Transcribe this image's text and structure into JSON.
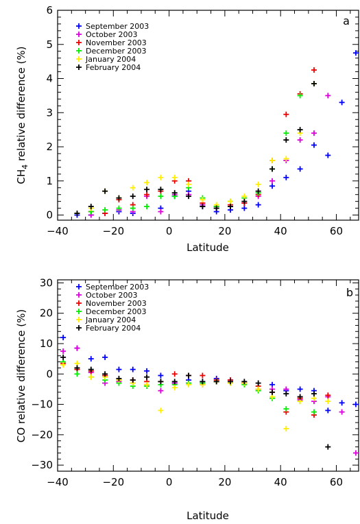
{
  "series_meta": [
    {
      "name": "September 2003",
      "color": "#0000ff"
    },
    {
      "name": "October 2003",
      "color": "#dd00dd"
    },
    {
      "name": "November 2003",
      "color": "#ee0000"
    },
    {
      "name": "December 2003",
      "color": "#00ee00"
    },
    {
      "name": "January 2004",
      "color": "#ffee00"
    },
    {
      "name": "February 2004",
      "color": "#000000"
    }
  ],
  "chart_data": [
    {
      "type": "scatter",
      "panel_label": "a",
      "xlabel": "Latitude",
      "ylabel_main": "CH",
      "ylabel_sub": "4",
      "ylabel_rest": " relative difference (%)",
      "xlim": [
        -40,
        68
      ],
      "ylim": [
        -0.15,
        6
      ],
      "xticks": [
        -40,
        -20,
        0,
        20,
        40,
        60
      ],
      "yticks": [
        0,
        1,
        2,
        3,
        4,
        5,
        6
      ],
      "legend_position": "top-left",
      "series": [
        {
          "name": "September 2003",
          "x": [
            -33,
            -28,
            -18,
            -13,
            -3,
            2,
            7,
            12,
            17,
            22,
            27,
            32,
            37,
            42,
            47,
            52,
            57,
            62,
            67
          ],
          "y": [
            0.0,
            0.0,
            0.1,
            0.05,
            0.2,
            0.55,
            0.7,
            0.25,
            0.1,
            0.15,
            0.2,
            0.3,
            0.85,
            1.1,
            1.35,
            2.05,
            1.75,
            3.3,
            4.75
          ]
        },
        {
          "name": "October 2003",
          "x": [
            -28,
            -23,
            -18,
            -13,
            -8,
            -3,
            2,
            7,
            12,
            17,
            22,
            27,
            32,
            37,
            42,
            47,
            52,
            57
          ],
          "y": [
            0.0,
            0.05,
            0.15,
            0.1,
            0.55,
            0.1,
            0.6,
            0.6,
            0.3,
            0.2,
            0.25,
            0.35,
            0.55,
            1.0,
            1.6,
            2.2,
            2.4,
            3.5
          ]
        },
        {
          "name": "November 2003",
          "x": [
            -33,
            -28,
            -23,
            -18,
            -13,
            -8,
            -3,
            2,
            7,
            12,
            17,
            22,
            27,
            32,
            37,
            42,
            47,
            52
          ],
          "y": [
            0.05,
            0.1,
            0.05,
            0.45,
            0.3,
            0.6,
            0.7,
            1.0,
            1.0,
            0.35,
            0.25,
            0.3,
            0.35,
            0.6,
            1.6,
            2.95,
            3.55,
            4.25
          ]
        },
        {
          "name": "December 2003",
          "x": [
            -33,
            -28,
            -23,
            -18,
            -13,
            -8,
            -3,
            2,
            7,
            12,
            17,
            22,
            27,
            32,
            37,
            42,
            47,
            52
          ],
          "y": [
            0.05,
            0.1,
            0.15,
            0.2,
            0.2,
            0.25,
            0.55,
            0.55,
            0.8,
            0.5,
            0.25,
            0.4,
            0.5,
            0.65,
            1.35,
            2.4,
            3.5,
            3.85
          ]
        },
        {
          "name": "January 2004",
          "x": [
            -33,
            -28,
            -23,
            -18,
            -13,
            -8,
            -3,
            2,
            7,
            12,
            17,
            22,
            27,
            32,
            37,
            42,
            47,
            52
          ],
          "y": [
            0.05,
            0.2,
            0.7,
            0.5,
            0.8,
            0.95,
            1.1,
            1.1,
            0.9,
            0.45,
            0.3,
            0.4,
            0.55,
            0.9,
            1.6,
            1.65,
            2.4,
            3.85
          ]
        },
        {
          "name": "February 2004",
          "x": [
            -33,
            -28,
            -23,
            -18,
            -13,
            -8,
            -3,
            2,
            7,
            12,
            17,
            22,
            27,
            32,
            37,
            42,
            47,
            52
          ],
          "y": [
            0.05,
            0.25,
            0.7,
            0.5,
            0.55,
            0.75,
            0.75,
            0.65,
            0.55,
            0.25,
            0.2,
            0.25,
            0.4,
            0.7,
            1.35,
            2.2,
            2.5,
            3.85
          ]
        }
      ]
    },
    {
      "type": "scatter",
      "panel_label": "b",
      "xlabel": "Latitude",
      "ylabel_main": "CO relative difference (%)",
      "ylabel_sub": "",
      "ylabel_rest": "",
      "xlim": [
        -40,
        68
      ],
      "ylim": [
        -32,
        31
      ],
      "xticks": [
        -40,
        -20,
        0,
        20,
        40,
        60
      ],
      "yticks": [
        -30,
        -20,
        -10,
        0,
        10,
        20,
        30
      ],
      "legend_position": "top-left",
      "series": [
        {
          "name": "September 2003",
          "x": [
            -38,
            -33,
            -28,
            -23,
            -18,
            -13,
            -8,
            -3,
            2,
            7,
            12,
            17,
            22,
            27,
            32,
            37,
            42,
            47,
            52,
            57,
            62,
            67
          ],
          "y": [
            12,
            8.5,
            5,
            5.5,
            1.5,
            1.5,
            1.0,
            -0.5,
            -3,
            -2,
            -2.5,
            -1.5,
            -2,
            -3,
            -5,
            -3.5,
            -5.5,
            -5,
            -5.5,
            -12,
            -9.5,
            -10
          ]
        },
        {
          "name": "October 2003",
          "x": [
            -38,
            -33,
            -28,
            -23,
            -18,
            -13,
            -8,
            -3,
            2,
            7,
            12,
            17,
            22,
            27,
            32,
            37,
            42,
            47,
            52,
            57,
            62,
            67
          ],
          "y": [
            7.5,
            8.5,
            0.5,
            -3,
            -2.5,
            -3,
            -3.5,
            -5.5,
            -3,
            -3,
            -3.5,
            -2.5,
            -2.5,
            -3,
            -5,
            -5,
            -5,
            -8.5,
            -9,
            -7.5,
            -12.5,
            -26
          ]
        },
        {
          "name": "November 2003",
          "x": [
            -38,
            -33,
            -28,
            -23,
            -18,
            -13,
            -8,
            -3,
            2,
            7,
            12,
            17,
            22,
            27,
            32,
            37,
            42,
            47,
            52,
            57
          ],
          "y": [
            3.5,
            1.5,
            1,
            -0.5,
            -2,
            -2,
            -2.5,
            -2.5,
            0,
            -0.5,
            -0.5,
            -2,
            -2,
            -3,
            -4,
            -6,
            -12.5,
            -8,
            -13.5,
            -7
          ]
        },
        {
          "name": "December 2003",
          "x": [
            -38,
            -33,
            -28,
            -23,
            -18,
            -13,
            -8,
            -3,
            2,
            7,
            12,
            17,
            22,
            27,
            32,
            37,
            42,
            47,
            52
          ],
          "y": [
            4,
            0,
            -1,
            -2,
            -3,
            -4,
            -4,
            -3.5,
            -3.5,
            -3,
            -3,
            -2.5,
            -3,
            -3.5,
            -5.5,
            -8,
            -11.5,
            -9,
            -12.5
          ]
        },
        {
          "name": "January 2004",
          "x": [
            -38,
            -33,
            -28,
            -23,
            -18,
            -13,
            -8,
            -3,
            2,
            7,
            12,
            17,
            22,
            27,
            32,
            37,
            42,
            47,
            52,
            57
          ],
          "y": [
            3,
            3.5,
            -1,
            -1,
            -2,
            -3,
            -3.5,
            -12,
            -4.5,
            -3.5,
            -3.5,
            -2.5,
            -3,
            -3,
            -5,
            -7.5,
            -18,
            -9,
            -8,
            -9
          ]
        },
        {
          "name": "February 2004",
          "x": [
            -38,
            -33,
            -28,
            -23,
            -18,
            -13,
            -8,
            -3,
            2,
            7,
            12,
            17,
            22,
            27,
            32,
            37,
            42,
            47,
            52,
            57
          ],
          "y": [
            5.5,
            2,
            1.5,
            0,
            -1.5,
            -2,
            -1,
            -2.5,
            -2.5,
            -0.5,
            -2.5,
            -2.5,
            -2.5,
            -2.5,
            -3,
            -6,
            -6.5,
            -7.5,
            -6.5,
            -24
          ]
        }
      ]
    }
  ]
}
